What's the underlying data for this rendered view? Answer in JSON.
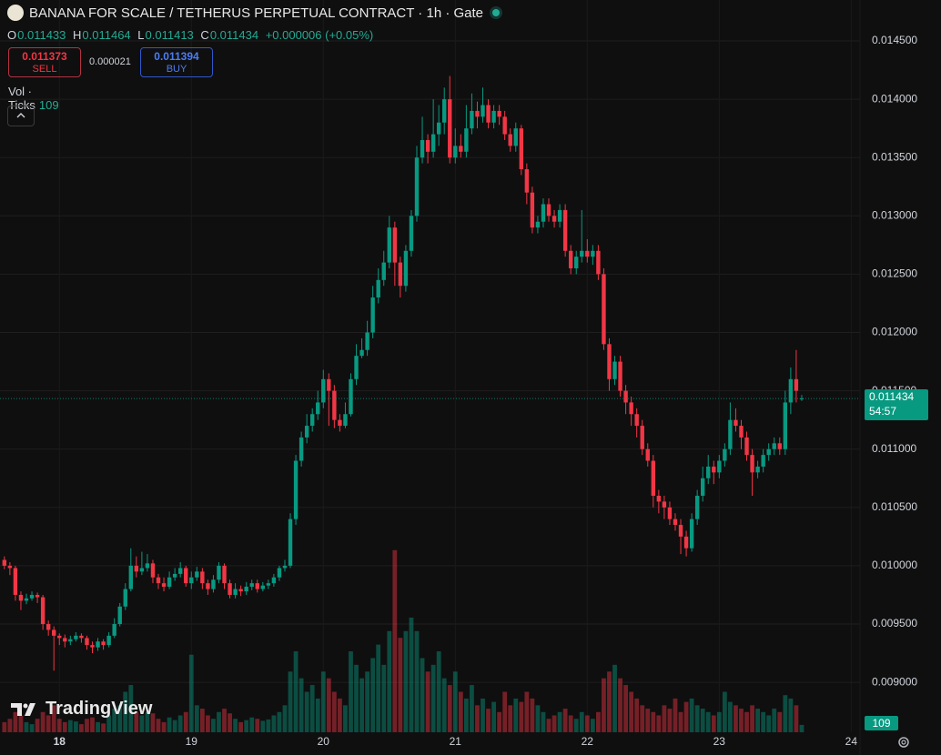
{
  "header": {
    "title": "BANANA FOR SCALE / TETHERUS PERPETUAL CONTRACT · 1h · Gate",
    "ohlc_letters": [
      "O",
      "H",
      "L",
      "C"
    ],
    "change": "+0.000006 (+0.05%)",
    "sell_price": 0.011373,
    "sell_label": "SELL",
    "spread": 2.1e-05,
    "buy_price": 0.011394,
    "buy_label": "BUY",
    "volume_label": "Vol · Ticks",
    "countdown": "54:57",
    "brand": "TradingView"
  },
  "chart_data": {
    "type": "candlestick",
    "up_color": "#089981",
    "down_color": "#f23645",
    "grid": true,
    "xlim": [
      -0.8,
      155.6
    ],
    "xticks": [
      {
        "value": 10,
        "label": "18"
      },
      {
        "value": 34,
        "label": "19"
      },
      {
        "value": 58,
        "label": "20"
      },
      {
        "value": 82,
        "label": "21"
      },
      {
        "value": 106,
        "label": "22"
      },
      {
        "value": 130,
        "label": "23"
      },
      {
        "value": 154,
        "label": "24"
      }
    ],
    "ylim": [
      0.008572,
      0.014851
    ],
    "yticks": [
      {
        "value": 0.0145,
        "label": "0.014500"
      },
      {
        "value": 0.014,
        "label": "0.014000"
      },
      {
        "value": 0.0135,
        "label": "0.013500"
      },
      {
        "value": 0.013,
        "label": "0.013000"
      },
      {
        "value": 0.0125,
        "label": "0.012500"
      },
      {
        "value": 0.012,
        "label": "0.012000"
      },
      {
        "value": 0.0115,
        "label": "0.011500"
      },
      {
        "value": 0.011,
        "label": "0.011000"
      },
      {
        "value": 0.0105,
        "label": "0.010500"
      },
      {
        "value": 0.01,
        "label": "0.010000"
      },
      {
        "value": 0.0095,
        "label": "0.009500"
      },
      {
        "value": 0.009,
        "label": "0.009000"
      }
    ],
    "volume_lim": [
      0,
      2900
    ],
    "ohlc": [
      [
        0.01005,
        0.01008,
        0.00997,
        0.01
      ],
      [
        0.01,
        0.01003,
        0.00992,
        0.00998
      ],
      [
        0.00998,
        0.01,
        0.0097,
        0.00975
      ],
      [
        0.00975,
        0.00978,
        0.00962,
        0.0097
      ],
      [
        0.0097,
        0.00976,
        0.00967,
        0.00972
      ],
      [
        0.00972,
        0.00978,
        0.0097,
        0.00975
      ],
      [
        0.00975,
        0.00977,
        0.00968,
        0.00973
      ],
      [
        0.00973,
        0.00975,
        0.00945,
        0.0095
      ],
      [
        0.0095,
        0.00953,
        0.0094,
        0.00945
      ],
      [
        0.00945,
        0.00948,
        0.0091,
        0.0094
      ],
      [
        0.0094,
        0.00942,
        0.00932,
        0.00938
      ],
      [
        0.00938,
        0.00941,
        0.0093,
        0.00935
      ],
      [
        0.00935,
        0.0094,
        0.00932,
        0.00937
      ],
      [
        0.00937,
        0.00943,
        0.00935,
        0.0094
      ],
      [
        0.0094,
        0.00942,
        0.00934,
        0.00938
      ],
      [
        0.00938,
        0.0094,
        0.00928,
        0.00932
      ],
      [
        0.00932,
        0.00935,
        0.00925,
        0.0093
      ],
      [
        0.0093,
        0.00938,
        0.00927,
        0.00935
      ],
      [
        0.00935,
        0.00937,
        0.00928,
        0.00932
      ],
      [
        0.00932,
        0.00943,
        0.0093,
        0.0094
      ],
      [
        0.0094,
        0.00955,
        0.00938,
        0.0095
      ],
      [
        0.0095,
        0.00968,
        0.00948,
        0.00965
      ],
      [
        0.00965,
        0.00985,
        0.00962,
        0.0098
      ],
      [
        0.0098,
        0.01015,
        0.00978,
        0.01
      ],
      [
        0.01,
        0.01008,
        0.0099,
        0.00995
      ],
      [
        0.00995,
        0.01012,
        0.00992,
        0.00998
      ],
      [
        0.00998,
        0.0101,
        0.00995,
        0.01002
      ],
      [
        0.01002,
        0.01005,
        0.00985,
        0.0099
      ],
      [
        0.0099,
        0.00993,
        0.0098,
        0.00985
      ],
      [
        0.00985,
        0.0099,
        0.00978,
        0.00982
      ],
      [
        0.00982,
        0.00995,
        0.0098,
        0.0099
      ],
      [
        0.0099,
        0.00998,
        0.00987,
        0.00993
      ],
      [
        0.00993,
        0.01003,
        0.0099,
        0.00998
      ],
      [
        0.00998,
        0.01,
        0.00982,
        0.00985
      ],
      [
        0.00985,
        0.00995,
        0.0098,
        0.0099
      ],
      [
        0.0099,
        0.00999,
        0.00987,
        0.00995
      ],
      [
        0.00995,
        0.00998,
        0.0098,
        0.00985
      ],
      [
        0.00985,
        0.00988,
        0.00975,
        0.0098
      ],
      [
        0.0098,
        0.00992,
        0.00977,
        0.00988
      ],
      [
        0.00988,
        0.01003,
        0.00985,
        0.01
      ],
      [
        0.01,
        0.01002,
        0.0098,
        0.00985
      ],
      [
        0.00985,
        0.00988,
        0.00972,
        0.00975
      ],
      [
        0.00975,
        0.00985,
        0.00972,
        0.0098
      ],
      [
        0.0098,
        0.00983,
        0.00974,
        0.00978
      ],
      [
        0.00978,
        0.00986,
        0.00975,
        0.00982
      ],
      [
        0.00982,
        0.00988,
        0.00979,
        0.00985
      ],
      [
        0.00985,
        0.00988,
        0.00977,
        0.0098
      ],
      [
        0.0098,
        0.00986,
        0.00978,
        0.00983
      ],
      [
        0.00983,
        0.00988,
        0.0098,
        0.00985
      ],
      [
        0.00985,
        0.00993,
        0.00982,
        0.0099
      ],
      [
        0.0099,
        0.01,
        0.00987,
        0.00998
      ],
      [
        0.00998,
        0.01005,
        0.00995,
        0.01
      ],
      [
        0.01,
        0.01045,
        0.00998,
        0.0104
      ],
      [
        0.0104,
        0.01095,
        0.01035,
        0.0109
      ],
      [
        0.0109,
        0.01115,
        0.01085,
        0.0111
      ],
      [
        0.0111,
        0.0113,
        0.01105,
        0.0112
      ],
      [
        0.0112,
        0.01135,
        0.01115,
        0.0113
      ],
      [
        0.0113,
        0.0115,
        0.01125,
        0.0114
      ],
      [
        0.0114,
        0.01168,
        0.01135,
        0.0116
      ],
      [
        0.0116,
        0.01165,
        0.0112,
        0.0115
      ],
      [
        0.0115,
        0.01155,
        0.01118,
        0.01125
      ],
      [
        0.01125,
        0.0113,
        0.01115,
        0.0112
      ],
      [
        0.0112,
        0.0114,
        0.01118,
        0.0113
      ],
      [
        0.0113,
        0.01165,
        0.01128,
        0.0116
      ],
      [
        0.0116,
        0.0119,
        0.01155,
        0.0118
      ],
      [
        0.0118,
        0.01195,
        0.01178,
        0.01185
      ],
      [
        0.01185,
        0.0121,
        0.0118,
        0.012
      ],
      [
        0.012,
        0.0124,
        0.01195,
        0.0123
      ],
      [
        0.0123,
        0.01255,
        0.01225,
        0.01245
      ],
      [
        0.01245,
        0.0127,
        0.0124,
        0.0126
      ],
      [
        0.0126,
        0.013,
        0.01255,
        0.0129
      ],
      [
        0.0129,
        0.01295,
        0.0124,
        0.0126
      ],
      [
        0.0126,
        0.01265,
        0.0123,
        0.0124
      ],
      [
        0.0124,
        0.01275,
        0.01235,
        0.0127
      ],
      [
        0.0127,
        0.01305,
        0.01265,
        0.013
      ],
      [
        0.013,
        0.0136,
        0.01295,
        0.0135
      ],
      [
        0.0135,
        0.01385,
        0.01345,
        0.01365
      ],
      [
        0.01365,
        0.0137,
        0.01345,
        0.01355
      ],
      [
        0.01355,
        0.014,
        0.0135,
        0.0137
      ],
      [
        0.0137,
        0.01395,
        0.0136,
        0.0138
      ],
      [
        0.0138,
        0.0141,
        0.0137,
        0.014
      ],
      [
        0.014,
        0.0142,
        0.01345,
        0.0135
      ],
      [
        0.0135,
        0.01375,
        0.01345,
        0.0136
      ],
      [
        0.0136,
        0.0137,
        0.0135,
        0.01355
      ],
      [
        0.01355,
        0.01395,
        0.0135,
        0.01375
      ],
      [
        0.01375,
        0.01405,
        0.0137,
        0.0139
      ],
      [
        0.0139,
        0.01398,
        0.01375,
        0.01385
      ],
      [
        0.01385,
        0.0141,
        0.0138,
        0.01395
      ],
      [
        0.01395,
        0.014,
        0.01375,
        0.0138
      ],
      [
        0.0138,
        0.01395,
        0.01375,
        0.0139
      ],
      [
        0.0139,
        0.01395,
        0.01378,
        0.01385
      ],
      [
        0.01385,
        0.0139,
        0.01365,
        0.0137
      ],
      [
        0.0137,
        0.01375,
        0.01355,
        0.0136
      ],
      [
        0.0136,
        0.0138,
        0.01355,
        0.01375
      ],
      [
        0.01375,
        0.01378,
        0.01335,
        0.0134
      ],
      [
        0.0134,
        0.01345,
        0.0131,
        0.0132
      ],
      [
        0.0132,
        0.01325,
        0.01285,
        0.0129
      ],
      [
        0.0129,
        0.013,
        0.01285,
        0.01295
      ],
      [
        0.01295,
        0.01315,
        0.0129,
        0.0131
      ],
      [
        0.0131,
        0.01315,
        0.01295,
        0.013
      ],
      [
        0.013,
        0.01305,
        0.0129,
        0.01295
      ],
      [
        0.01295,
        0.0131,
        0.0129,
        0.01305
      ],
      [
        0.01305,
        0.0131,
        0.01265,
        0.0127
      ],
      [
        0.0127,
        0.01275,
        0.0125,
        0.01255
      ],
      [
        0.01255,
        0.0127,
        0.0125,
        0.01265
      ],
      [
        0.01265,
        0.01305,
        0.0126,
        0.0127
      ],
      [
        0.0127,
        0.0128,
        0.0126,
        0.01265
      ],
      [
        0.01265,
        0.01275,
        0.01258,
        0.0127
      ],
      [
        0.0127,
        0.01275,
        0.01245,
        0.0125
      ],
      [
        0.0125,
        0.01255,
        0.01185,
        0.0119
      ],
      [
        0.0119,
        0.01195,
        0.0115,
        0.0116
      ],
      [
        0.0116,
        0.0118,
        0.01155,
        0.01175
      ],
      [
        0.01175,
        0.0118,
        0.01145,
        0.0115
      ],
      [
        0.0115,
        0.01155,
        0.0113,
        0.0114
      ],
      [
        0.0114,
        0.01145,
        0.0112,
        0.0113
      ],
      [
        0.0113,
        0.01135,
        0.0111,
        0.0112
      ],
      [
        0.0112,
        0.01125,
        0.01095,
        0.011
      ],
      [
        0.011,
        0.01105,
        0.01085,
        0.0109
      ],
      [
        0.0109,
        0.01095,
        0.0105,
        0.0106
      ],
      [
        0.0106,
        0.01065,
        0.01045,
        0.01055
      ],
      [
        0.01055,
        0.0106,
        0.0104,
        0.0105
      ],
      [
        0.0105,
        0.01055,
        0.01035,
        0.0104
      ],
      [
        0.0104,
        0.01045,
        0.0103,
        0.01035
      ],
      [
        0.01035,
        0.0104,
        0.0101,
        0.01025
      ],
      [
        0.01025,
        0.0103,
        0.01008,
        0.01015
      ],
      [
        0.01015,
        0.01045,
        0.01012,
        0.0104
      ],
      [
        0.0104,
        0.01065,
        0.01035,
        0.0106
      ],
      [
        0.0106,
        0.01085,
        0.01055,
        0.01075
      ],
      [
        0.01075,
        0.01095,
        0.0107,
        0.01085
      ],
      [
        0.01085,
        0.0109,
        0.0107,
        0.0108
      ],
      [
        0.0108,
        0.01095,
        0.01075,
        0.0109
      ],
      [
        0.0109,
        0.01105,
        0.01085,
        0.011
      ],
      [
        0.011,
        0.0114,
        0.01095,
        0.01125
      ],
      [
        0.01125,
        0.01135,
        0.01115,
        0.0112
      ],
      [
        0.0112,
        0.01125,
        0.011,
        0.0111
      ],
      [
        0.0111,
        0.01115,
        0.0109,
        0.01095
      ],
      [
        0.01095,
        0.011,
        0.0106,
        0.0108
      ],
      [
        0.0108,
        0.0109,
        0.01075,
        0.01085
      ],
      [
        0.01085,
        0.011,
        0.0108,
        0.01095
      ],
      [
        0.01095,
        0.01105,
        0.0109,
        0.011
      ],
      [
        0.011,
        0.0111,
        0.01095,
        0.01105
      ],
      [
        0.01105,
        0.0111,
        0.01095,
        0.011
      ],
      [
        0.011,
        0.0115,
        0.01095,
        0.0114
      ],
      [
        0.0114,
        0.0117,
        0.0113,
        0.0116
      ],
      [
        0.0116,
        0.01185,
        0.0114,
        0.0115
      ],
      [
        0.011433,
        0.011464,
        0.011413,
        0.011434
      ]
    ],
    "volume": [
      150,
      200,
      300,
      250,
      150,
      120,
      200,
      300,
      250,
      400,
      200,
      150,
      180,
      160,
      120,
      200,
      220,
      150,
      130,
      250,
      350,
      400,
      600,
      700,
      300,
      250,
      300,
      280,
      200,
      150,
      220,
      180,
      250,
      300,
      1150,
      400,
      350,
      250,
      200,
      300,
      350,
      280,
      200,
      150,
      180,
      220,
      200,
      170,
      190,
      250,
      300,
      400,
      900,
      1200,
      800,
      600,
      700,
      500,
      900,
      800,
      600,
      500,
      400,
      1200,
      1000,
      800,
      900,
      1100,
      1300,
      1000,
      1500,
      2700,
      1400,
      1500,
      1700,
      1500,
      1100,
      900,
      1000,
      1200,
      800,
      700,
      900,
      600,
      500,
      700,
      400,
      500,
      350,
      450,
      300,
      600,
      400,
      500,
      450,
      600,
      500,
      400,
      300,
      200,
      250,
      300,
      350,
      250,
      200,
      300,
      250,
      200,
      300,
      800,
      900,
      1000,
      800,
      700,
      600,
      500,
      400,
      350,
      300,
      250,
      400,
      350,
      500,
      300,
      450,
      500,
      400,
      350,
      300,
      250,
      300,
      600,
      450,
      400,
      350,
      300,
      400,
      350,
      300,
      250,
      350,
      300,
      550,
      500,
      400,
      109
    ]
  }
}
